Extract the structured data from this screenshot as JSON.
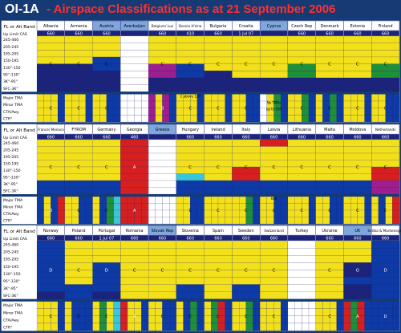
{
  "title": {
    "id": "OI-1A",
    "text": " - Airspace Classifications as at 21 September 2006"
  },
  "chart_data": {
    "type": "table",
    "colors": {
      "A": "#d61f1f",
      "B": "#9b1f8f",
      "C": "#f2e01a",
      "D": "#0e3aa6",
      "E": "#1f8f3a",
      "F": "#38c6d8",
      "G": "#1b237a",
      "none": "#ffffff",
      "header": "#ffffff",
      "header_blue": "#7fa6dd",
      "rowlabel": "#ffffff"
    },
    "row_labels": [
      "Up Limit CAS",
      "245-460",
      "205-245",
      "195-205",
      "150-195",
      "130°-150",
      "95°-130°",
      "3K°-95°",
      "SFC-3K°",
      "Major TMA",
      "Minor TMA",
      "CTA/Awy",
      "CTR°"
    ],
    "corner_label": "FL or Alt Band",
    "panels": [
      {
        "columns": [
          "Albania",
          "Armenia",
          "Austria",
          "Azerbaijan",
          "Belgium/ Lux",
          "Bosnia H'zina",
          "Bulgaria",
          "Croatia",
          "Cyprus",
          "Czech Rep",
          "Denmark",
          "Estonia",
          "Finland"
        ],
        "header_blue": [
          false,
          false,
          true,
          true,
          false,
          false,
          false,
          false,
          true,
          false,
          false,
          false,
          false
        ],
        "limits": [
          "660",
          "660",
          "660",
          "",
          "660",
          "410",
          "660",
          "1 Jul 07",
          "",
          "660",
          "660",
          "660",
          "660"
        ],
        "upper": [
          [
            "C",
            "C",
            "C",
            "C",
            "G",
            "G",
            "G",
            "G"
          ],
          [
            "C",
            "C",
            "C",
            "C",
            "G",
            "G",
            "G",
            "G"
          ],
          [
            "C",
            "C",
            "C",
            "D",
            "D",
            "G",
            "G",
            "G"
          ],
          [
            "none",
            "none",
            "none",
            "none",
            "none",
            "none",
            "none",
            "none"
          ],
          [
            "C",
            "C",
            "C",
            "C",
            "B",
            "B",
            "G",
            "G"
          ],
          [
            "C",
            "C",
            "C",
            "C",
            "D",
            "D",
            "G",
            "G"
          ],
          [
            "C",
            "C",
            "C",
            "C",
            "C",
            "G",
            "G",
            "G"
          ],
          [
            "C",
            "C",
            "C",
            "C",
            "C",
            "C",
            "G",
            "G"
          ],
          [
            "C",
            "C",
            "C",
            "C",
            "C",
            "C",
            "G",
            "G"
          ],
          [
            "C",
            "C",
            "C",
            "C",
            "E",
            "E",
            "G",
            "G"
          ],
          [
            "C",
            "C",
            "C",
            "C",
            "C",
            "C",
            "G",
            "G"
          ],
          [
            "C",
            "C",
            "C",
            "C",
            "C",
            "C",
            "G",
            "G"
          ],
          [
            "C",
            "C",
            "C",
            "C",
            "E",
            "E",
            "G",
            "G"
          ]
        ],
        "lower": [
          [
            "C",
            "C",
            "C",
            "D"
          ],
          [
            "C",
            "C",
            "C",
            "D"
          ],
          [
            "C",
            "C",
            "D",
            "D"
          ],
          [
            "none",
            "none",
            "none",
            "none"
          ],
          [
            "B",
            "C",
            "B",
            "D"
          ],
          [
            "C",
            "C",
            "C",
            "D"
          ],
          [
            "C",
            "C",
            "C",
            "D"
          ],
          [
            "C",
            "C",
            "D",
            "D"
          ],
          [
            "none",
            "C",
            "E",
            "D"
          ],
          [
            "C",
            "C",
            "E",
            "D"
          ],
          [
            "C",
            "D",
            "E",
            "D"
          ],
          [
            "C",
            "C",
            "C",
            "D"
          ],
          [
            "C",
            "C",
            "D",
            "D"
          ]
        ],
        "notes": [
          {
            "col": 5,
            "text": "C above 120"
          },
          {
            "col": 8,
            "text": "No TMAs"
          },
          {
            "col": 8,
            "text": "up to 195"
          }
        ]
      },
      {
        "columns": [
          "France/ Monaco",
          "FYROM",
          "Germany",
          "Georgia",
          "Greece",
          "Hungary",
          "Ireland",
          "Italy",
          "Latvia",
          "Lithuania",
          "Malta",
          "Moldova",
          "Netherlands"
        ],
        "header_blue": [
          false,
          false,
          false,
          false,
          true,
          false,
          false,
          false,
          false,
          false,
          false,
          false,
          false
        ],
        "limits": [
          "660",
          "660",
          "660",
          "460",
          "",
          "660",
          "660",
          "660",
          "660",
          "660",
          "660",
          "660",
          "660"
        ],
        "upper": [
          [
            "C",
            "C",
            "C",
            "C",
            "C",
            "C",
            "D",
            "D"
          ],
          [
            "C",
            "C",
            "C",
            "C",
            "C",
            "C",
            "D",
            "D"
          ],
          [
            "C",
            "C",
            "C",
            "C",
            "C",
            "C",
            "D",
            "D"
          ],
          [
            "A",
            "A",
            "A",
            "A",
            "A",
            "A",
            "A",
            "A"
          ],
          [
            "none",
            "none",
            "none",
            "none",
            "none",
            "none",
            "none",
            "none"
          ],
          [
            "C",
            "C",
            "C",
            "C",
            "C",
            "F",
            "D",
            "D"
          ],
          [
            "C",
            "C",
            "C",
            "C",
            "C",
            "C",
            "D",
            "D"
          ],
          [
            "C",
            "C",
            "C",
            "C",
            "A",
            "A",
            "D",
            "D"
          ],
          [
            "A",
            "C",
            "C",
            "C",
            "C",
            "C",
            "D",
            "D"
          ],
          [
            "C",
            "C",
            "C",
            "C",
            "C",
            "C",
            "D",
            "D"
          ],
          [
            "C",
            "C",
            "C",
            "C",
            "C",
            "C",
            "D",
            "D"
          ],
          [
            "C",
            "C",
            "C",
            "C",
            "C",
            "C",
            "D",
            "D"
          ],
          [
            "C",
            "C",
            "C",
            "C",
            "A",
            "A",
            "B",
            "B"
          ]
        ],
        "lower": [
          [
            "D",
            "C",
            "D",
            "A"
          ],
          [
            "C",
            "C",
            "D",
            "D"
          ],
          [
            "C",
            "D",
            "E",
            "F"
          ],
          [
            "A",
            "A",
            "A",
            "A"
          ],
          [
            "none",
            "none",
            "none",
            "none"
          ],
          [
            "C",
            "C",
            "D",
            "D"
          ],
          [
            "C",
            "C",
            "C",
            "C"
          ],
          [
            "C",
            "C",
            "E",
            "D"
          ],
          [
            "C",
            "C",
            "D",
            "D"
          ],
          [
            "C",
            "C",
            "C",
            "D"
          ],
          [
            "C",
            "C",
            "D",
            "D"
          ],
          [
            "C",
            "C",
            "C",
            "D"
          ],
          [
            "C",
            "D",
            "C",
            "A"
          ]
        ],
        "notes": [
          {
            "col": 8,
            "text": "660"
          }
        ]
      },
      {
        "columns": [
          "Norway",
          "Poland",
          "Portugal",
          "Romania",
          "Slovak Rep",
          "Slovenia",
          "Spain",
          "Sweden",
          "Switzerland",
          "Turkey",
          "Ukraine",
          "UK",
          "Serbia & Montenegro"
        ],
        "header_blue": [
          false,
          false,
          false,
          false,
          true,
          false,
          false,
          false,
          false,
          false,
          false,
          true,
          false
        ],
        "limits": [
          "660",
          "660",
          "1 Jul 07",
          "660",
          "660",
          "660",
          "660",
          "660",
          "660",
          "",
          "660",
          "660",
          "660"
        ],
        "upper": [
          [
            "D",
            "D",
            "D",
            "D",
            "D",
            "D",
            "D",
            "G"
          ],
          [
            "C",
            "C",
            "C",
            "C",
            "C",
            "C",
            "D",
            "D"
          ],
          [
            "C",
            "C",
            "C",
            "D",
            "D",
            "D",
            "D",
            "G"
          ],
          [
            "C",
            "C",
            "C",
            "C",
            "C",
            "C",
            "C",
            "C"
          ],
          [
            "C",
            "C",
            "C",
            "C",
            "C",
            "C",
            "C",
            "C"
          ],
          [
            "C",
            "C",
            "C",
            "C",
            "C",
            "C",
            "D",
            "D"
          ],
          [
            "C",
            "C",
            "C",
            "C",
            "C",
            "C",
            "C",
            "C"
          ],
          [
            "C",
            "C",
            "C",
            "C",
            "C",
            "C",
            "D",
            "D"
          ],
          [
            "C",
            "C",
            "C",
            "C",
            "C",
            "C",
            "C",
            "C"
          ],
          [
            "none",
            "none",
            "none",
            "none",
            "none",
            "none",
            "none",
            "none"
          ],
          [
            "C",
            "C",
            "C",
            "C",
            "C",
            "C",
            "C",
            "C"
          ],
          [
            "C",
            "C",
            "C",
            "G",
            "G",
            "D",
            "G",
            "G"
          ],
          [
            "D",
            "D",
            "D",
            "D",
            "D",
            "D",
            "D",
            "D"
          ]
        ],
        "lower": [
          [
            "C",
            "C",
            "C",
            "D"
          ],
          [
            "C",
            "D",
            "D",
            "D"
          ],
          [
            "C",
            "E",
            "C",
            "F"
          ],
          [
            "A",
            "C",
            "C",
            "D"
          ],
          [
            "C",
            "C",
            "D",
            "D"
          ],
          [
            "C",
            "D",
            "E",
            "D"
          ],
          [
            "C",
            "E",
            "A",
            "D"
          ],
          [
            "C",
            "C",
            "E",
            "D"
          ],
          [
            "C",
            "C",
            "C",
            "D"
          ],
          [
            "none",
            "none",
            "none",
            "none"
          ],
          [
            "C",
            "C",
            "C",
            "D"
          ],
          [
            "A",
            "E",
            "A",
            "D"
          ],
          [
            "D",
            "D",
            "D",
            "D"
          ]
        ],
        "notes": []
      }
    ]
  }
}
